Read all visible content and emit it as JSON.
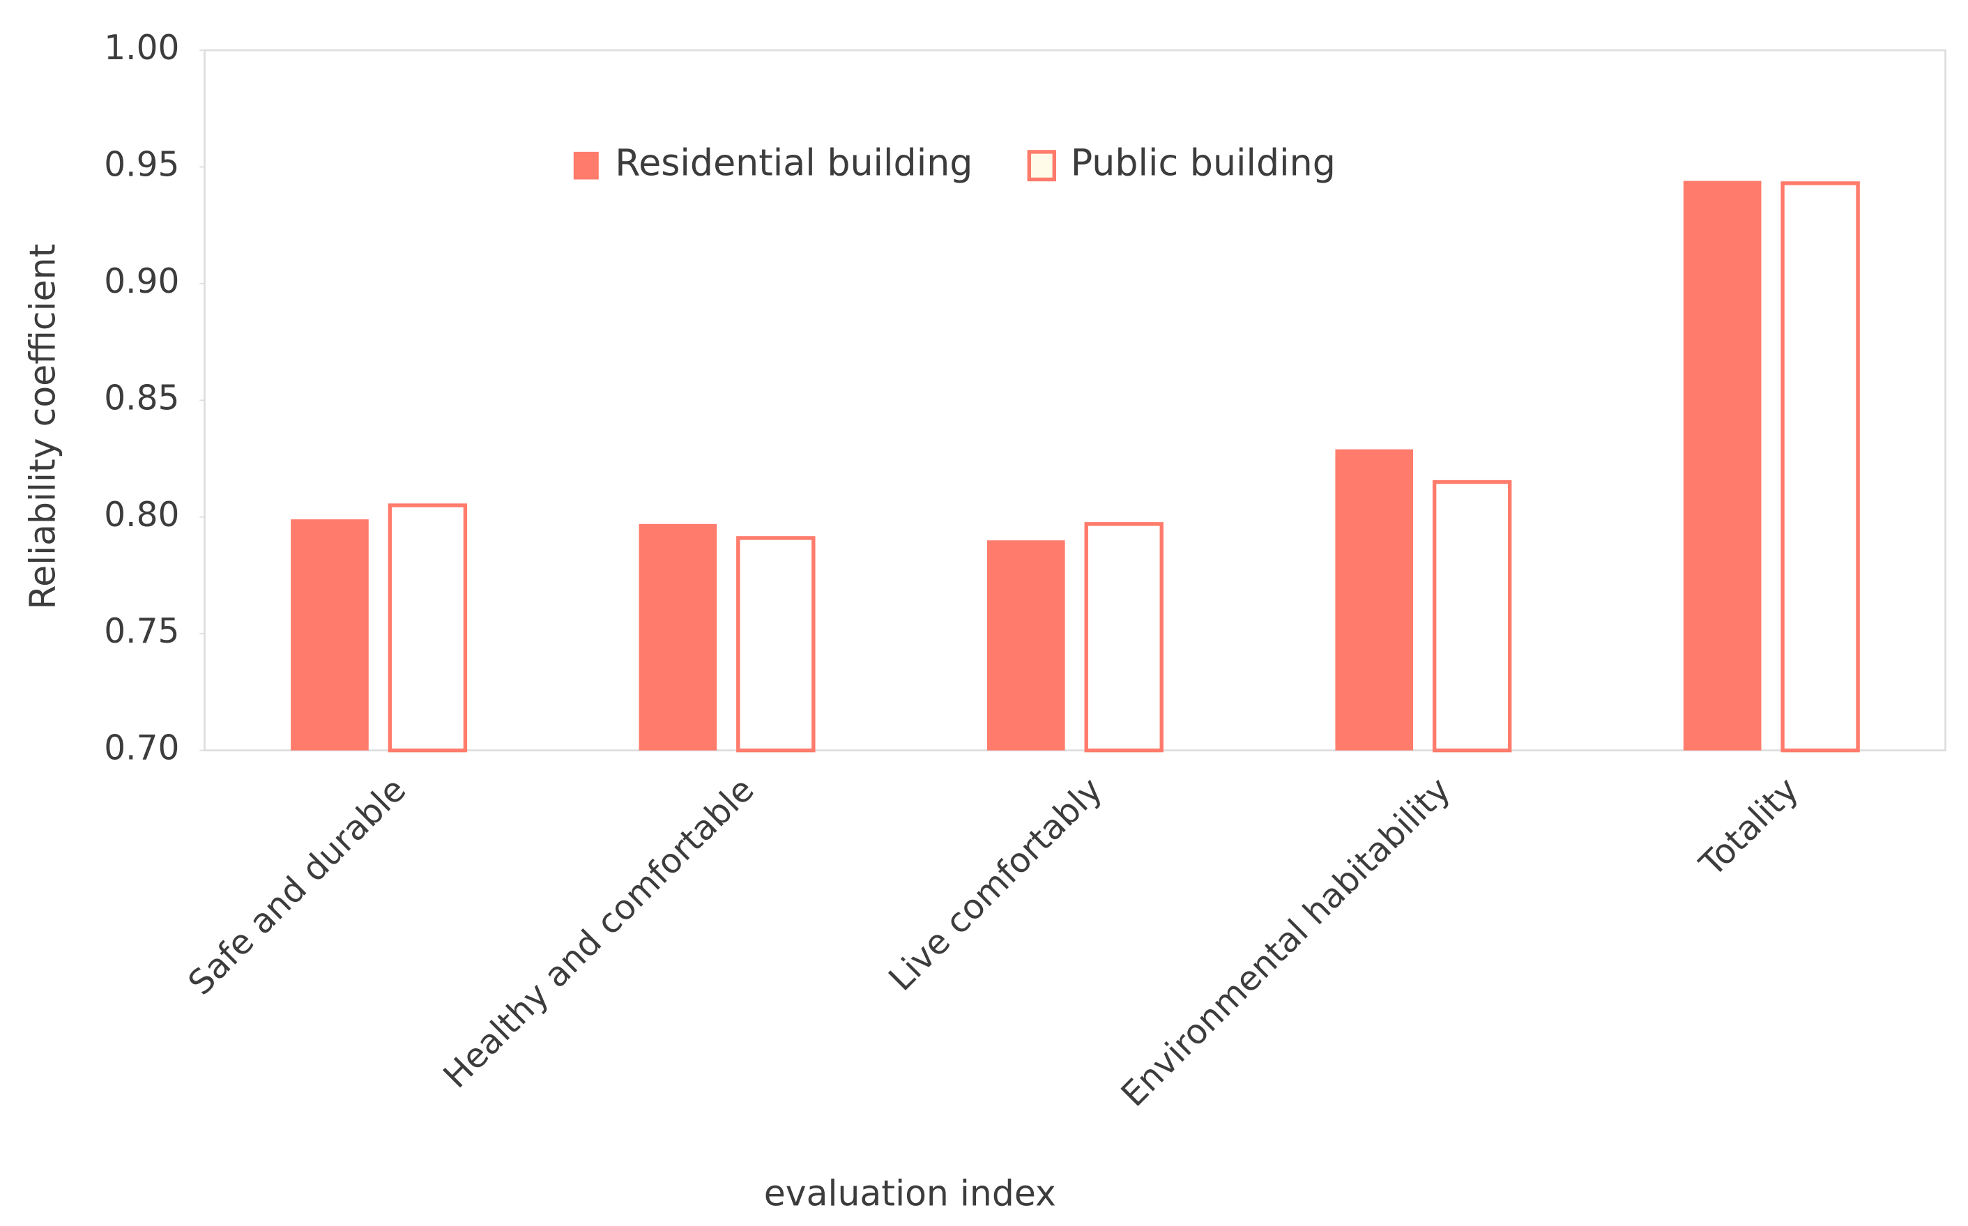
{
  "chart_data": {
    "type": "bar",
    "xlabel": "evaluation index",
    "ylabel": "Reliability coefficient",
    "categories": [
      "Safe and durable",
      "Healthy and comfortable",
      "Live comfortably",
      "Environmental habitability",
      "Totality"
    ],
    "series": [
      {
        "name": "Residential building",
        "color": "#ff7b6b",
        "filled": true,
        "values": [
          0.799,
          0.797,
          0.79,
          0.829,
          0.944
        ]
      },
      {
        "name": "Public building",
        "color": "#ff7b6b",
        "filled": false,
        "values": [
          0.805,
          0.791,
          0.797,
          0.815,
          0.943
        ]
      }
    ],
    "ylim": [
      0.7,
      1.0
    ],
    "yticks": [
      {
        "value": 0.7,
        "label": "0.70"
      },
      {
        "value": 0.75,
        "label": "0.75"
      },
      {
        "value": 0.8,
        "label": "0.80"
      },
      {
        "value": 0.85,
        "label": "0.85"
      },
      {
        "value": 0.9,
        "label": "0.90"
      },
      {
        "value": 0.95,
        "label": "0.95"
      },
      {
        "value": 1.0,
        "label": "1.00"
      }
    ],
    "grid": false,
    "legend": "top"
  }
}
